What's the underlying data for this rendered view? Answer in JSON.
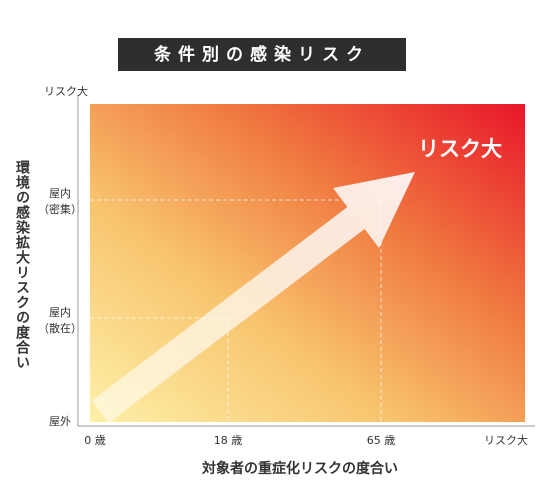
{
  "title": "条件別の感染リスク",
  "annotation": "リスク大",
  "y_axis": {
    "title": "環境の感染拡大リスクの度合い",
    "labels": [
      {
        "main": "リスク大"
      },
      {
        "main": "屋内",
        "sub": "（密集）"
      },
      {
        "main": "屋内",
        "sub": "（散在）"
      },
      {
        "main": "屋外"
      }
    ]
  },
  "x_axis": {
    "title": "対象者の重症化リスクの度合い",
    "labels": [
      "0 歳",
      "18 歳",
      "65 歳",
      "リスク大"
    ]
  }
}
